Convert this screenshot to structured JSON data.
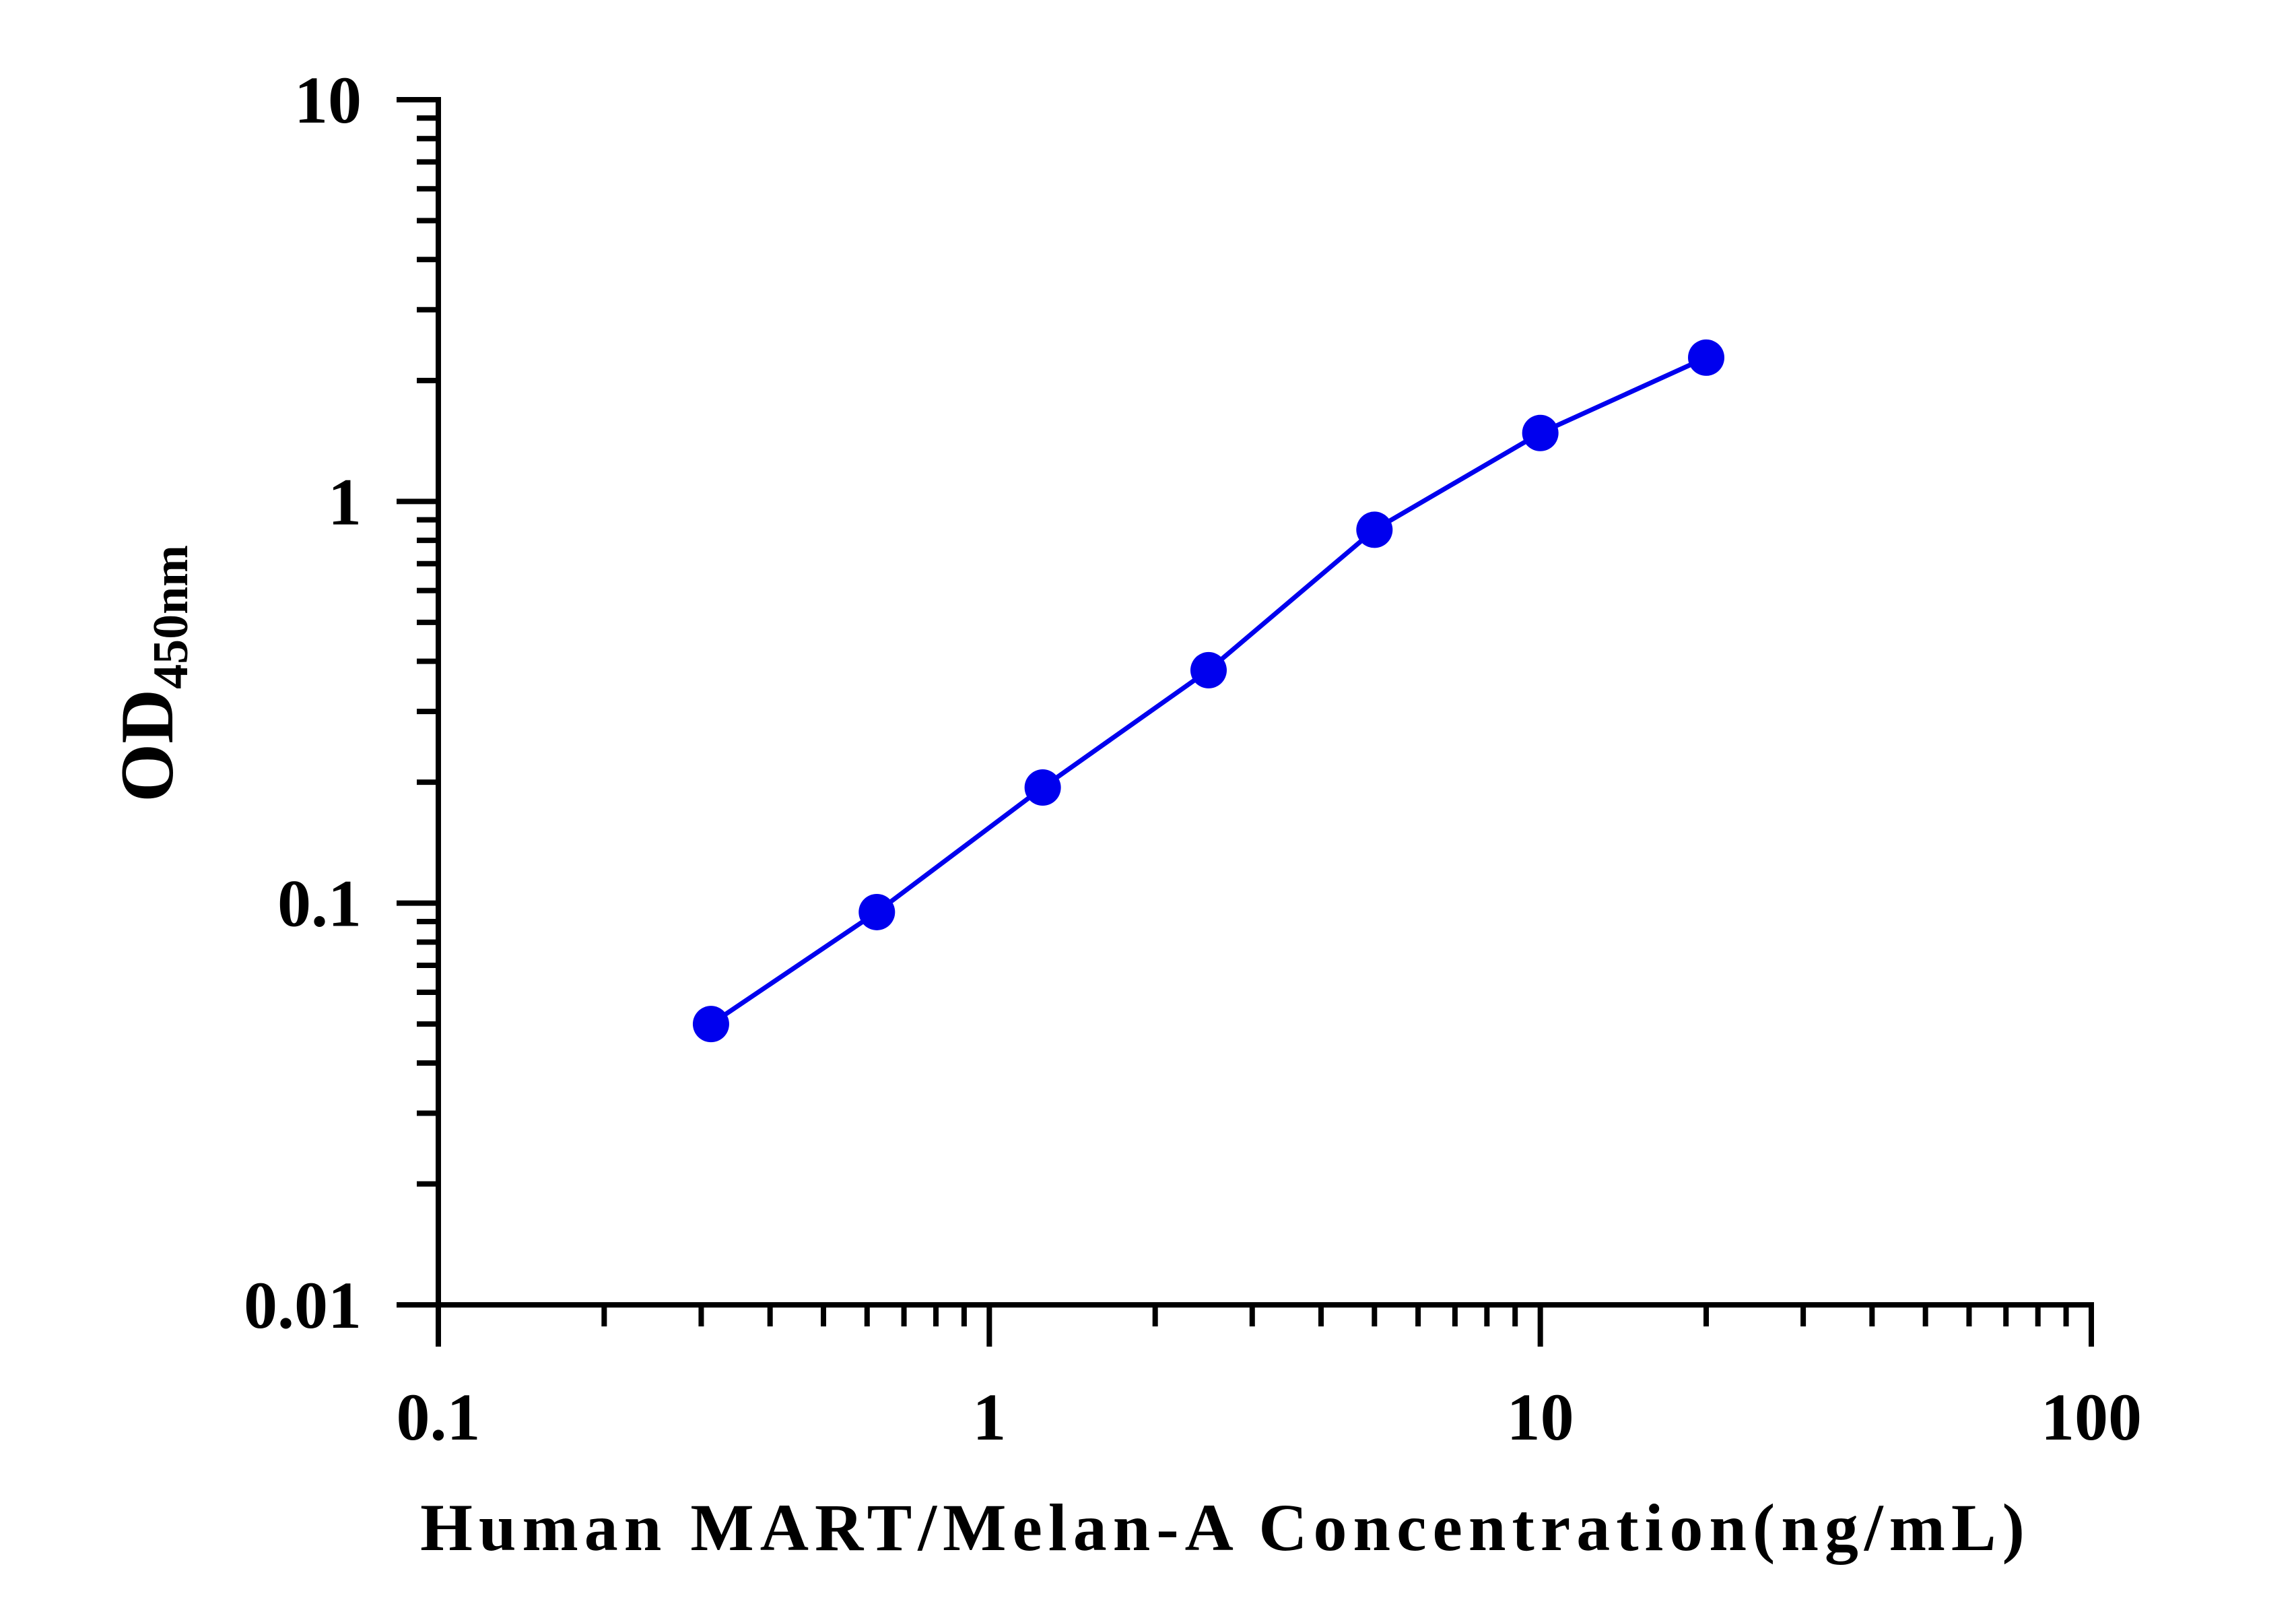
{
  "chart_data": {
    "type": "line",
    "title": "",
    "xlabel": "Human MART/Melan-A Concentration(ng/mL)",
    "ylabel": "OD",
    "ylabel_subscript": "450nm",
    "x_scale": "log",
    "y_scale": "log",
    "xlim": [
      0.1,
      100
    ],
    "ylim": [
      0.01,
      10
    ],
    "x_ticks": [
      0.1,
      1,
      10,
      100
    ],
    "x_tick_labels": [
      "0.1",
      "1",
      "10",
      "100"
    ],
    "y_ticks": [
      0.01,
      0.1,
      1,
      10
    ],
    "y_tick_labels": [
      "0.01",
      "0.1",
      "1",
      "10"
    ],
    "grid": false,
    "legend": "none",
    "series": [
      {
        "color": "#0000ee",
        "marker": "circle",
        "x": [
          0.3125,
          0.625,
          1.25,
          2.5,
          5,
          10,
          20
        ],
        "y": [
          0.05,
          0.095,
          0.194,
          0.38,
          0.85,
          1.48,
          2.28
        ]
      }
    ]
  }
}
